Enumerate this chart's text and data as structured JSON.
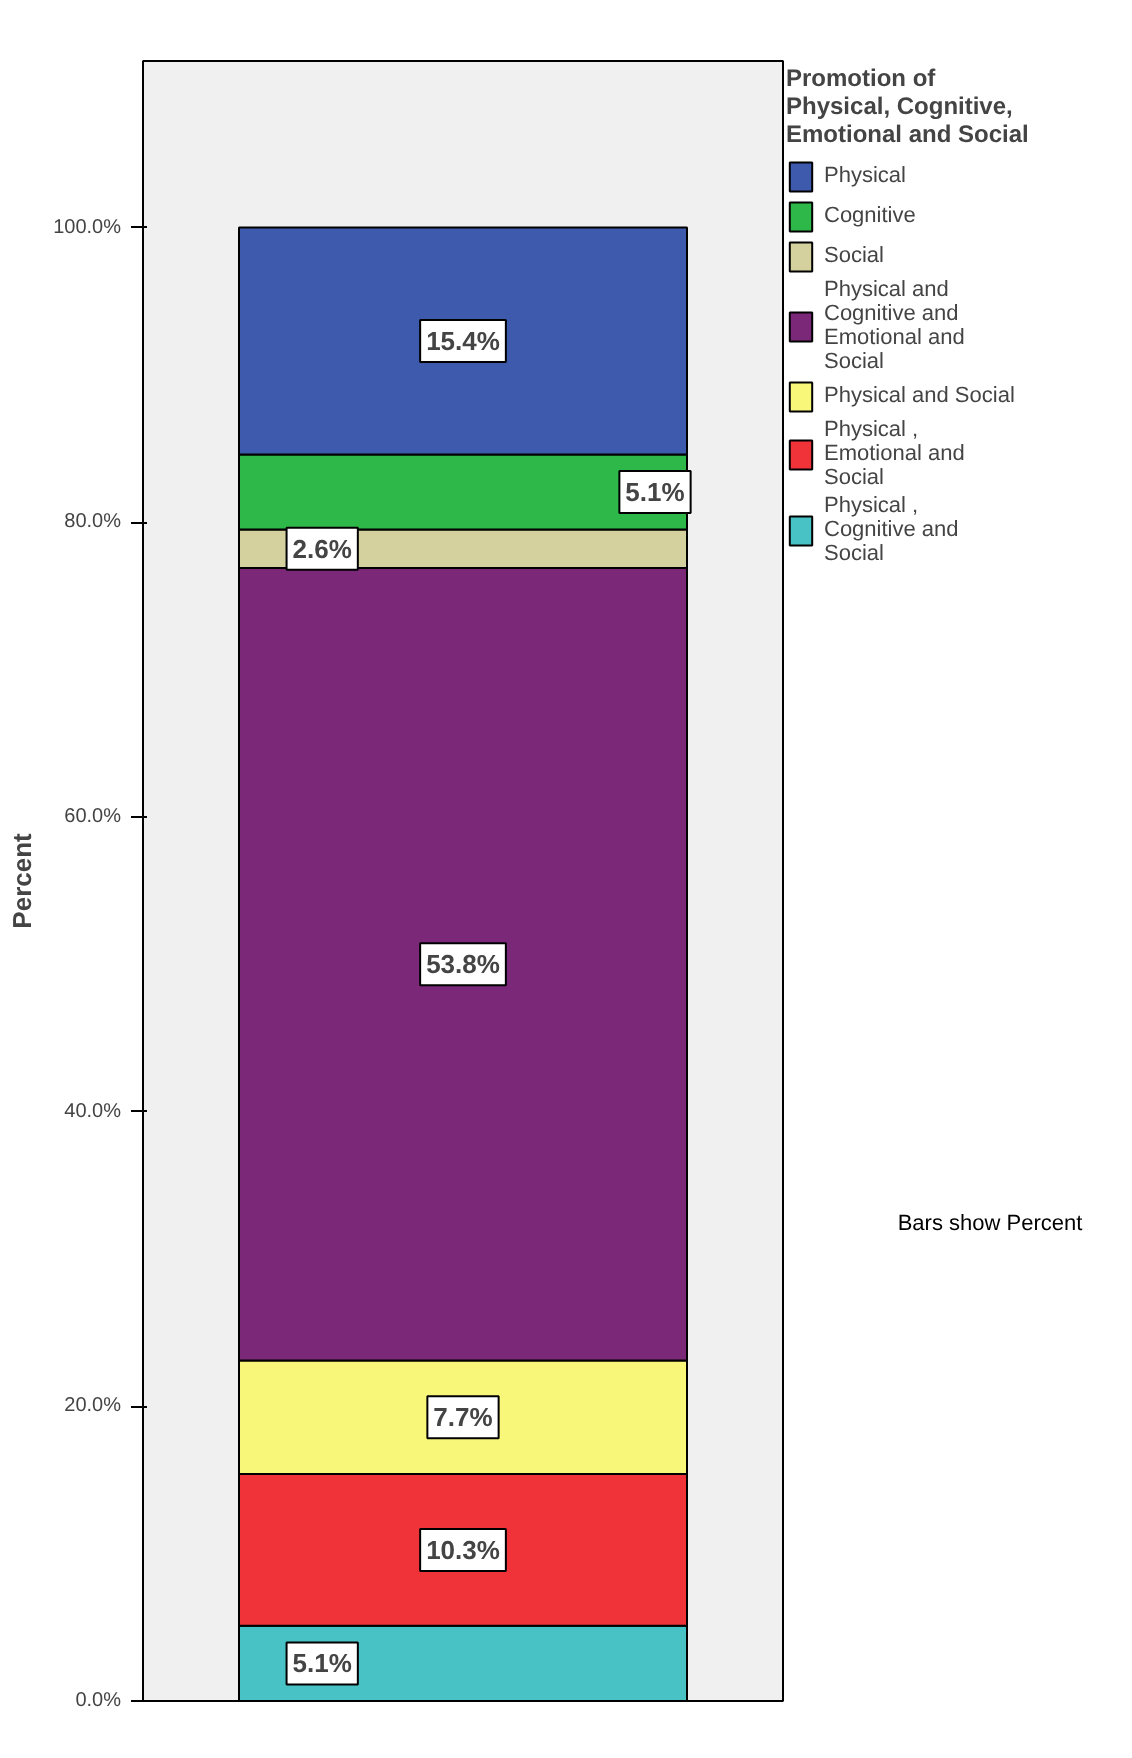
{
  "chart_data": {
    "type": "bar",
    "stacked": true,
    "categories": [
      null
    ],
    "ylabel": "Percent",
    "legend_title": "Promotion of Physical, Cognitive, Emotional and Social",
    "legend": "right",
    "ylim": [
      0,
      111.3
    ],
    "yticks": [
      {
        "value": 0,
        "label": "0.0%"
      },
      {
        "value": 20,
        "label": "20.0%"
      },
      {
        "value": 40,
        "label": "40.0%"
      },
      {
        "value": 60,
        "label": "60.0%"
      },
      {
        "value": 80,
        "label": "80.0%"
      },
      {
        "value": 100,
        "label": "100.0%"
      }
    ],
    "series": [
      {
        "name": "Physical , Cognitive and Social",
        "color": "#48c2c5",
        "values": [
          5.1
        ],
        "value_labels": [
          "5.1%"
        ]
      },
      {
        "name": "Physical , Emotional and Social",
        "color": "#ef3338",
        "values": [
          10.3
        ],
        "value_labels": [
          "10.3%"
        ]
      },
      {
        "name": "Physical and Social",
        "color": "#f9f77a",
        "values": [
          7.7
        ],
        "value_labels": [
          "7.7%"
        ]
      },
      {
        "name": "Physical and Cognitive and Emotional and Social",
        "color": "#7b2879",
        "values": [
          53.8
        ],
        "value_labels": [
          "53.8%"
        ]
      },
      {
        "name": "Social",
        "color": "#d5d19e",
        "values": [
          2.6
        ],
        "value_labels": [
          "2.6%"
        ]
      },
      {
        "name": "Cognitive",
        "color": "#2fb84a",
        "values": [
          5.1
        ],
        "value_labels": [
          "5.1%"
        ]
      },
      {
        "name": "Physical",
        "color": "#3d5aad",
        "values": [
          15.4
        ],
        "value_labels": [
          "15.4%"
        ]
      }
    ],
    "annotations": [
      "Bars show Percent"
    ],
    "grid": false
  }
}
